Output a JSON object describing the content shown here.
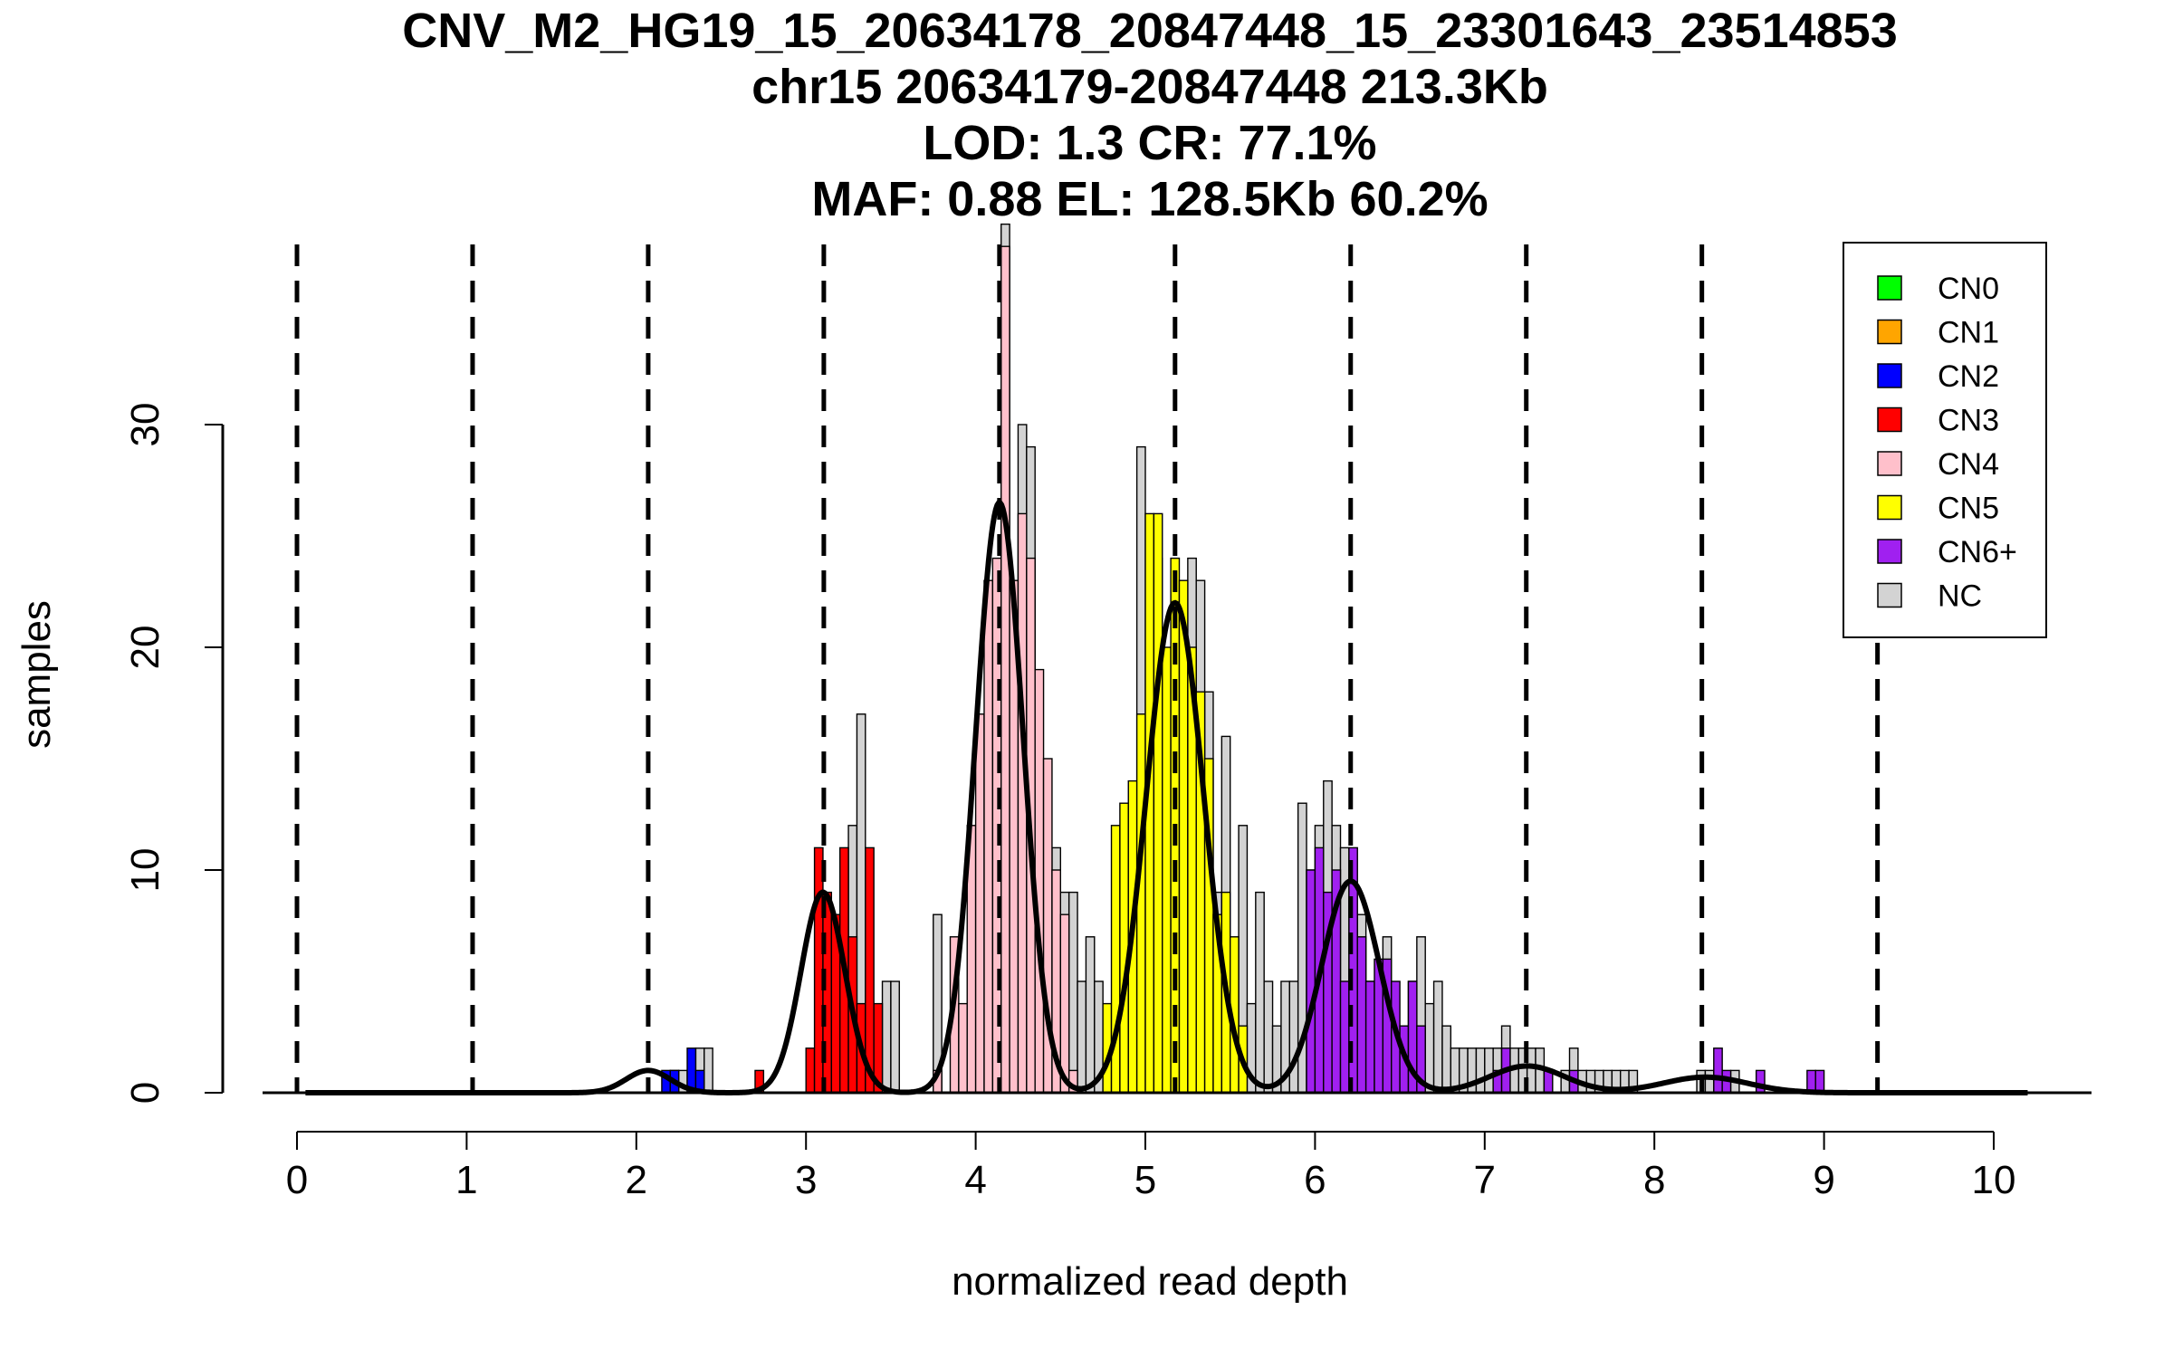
{
  "chart_data": {
    "type": "histogram",
    "title_lines": [
      "CNV_M2_HG19_15_20634178_20847448_15_23301643_23514853",
      "chr15 20634179-20847448 213.3Kb",
      "LOD: 1.3 CR: 77.1%",
      "MAF: 0.88 EL: 128.5Kb 60.2%"
    ],
    "xlabel": "normalized read depth",
    "ylabel": "samples",
    "xlim": [
      -0.2,
      10.5
    ],
    "ylim": [
      0,
      38
    ],
    "x_ticks": [
      0,
      1,
      2,
      3,
      4,
      5,
      6,
      7,
      8,
      9,
      10
    ],
    "x_tick_labels": [
      "0",
      "1",
      "2",
      "3",
      "4",
      "5",
      "6",
      "7",
      "8",
      "9",
      "10"
    ],
    "y_ticks": [
      0,
      10,
      20,
      30
    ],
    "y_tick_labels": [
      "0",
      "10",
      "20",
      "30"
    ],
    "bin_width": 0.05,
    "dashed_lines_x": [
      0.0,
      1.035,
      2.07,
      3.105,
      4.14,
      5.175,
      6.21,
      7.245,
      8.28,
      9.315
    ],
    "legend": {
      "position": "top-right",
      "entries": [
        {
          "label": "CN0",
          "color": "#00ff00"
        },
        {
          "label": "CN1",
          "color": "#ffa500"
        },
        {
          "label": "CN2",
          "color": "#0000ff"
        },
        {
          "label": "CN3",
          "color": "#ff0000"
        },
        {
          "label": "CN4",
          "color": "#ffc0cb"
        },
        {
          "label": "CN5",
          "color": "#ffff00"
        },
        {
          "label": "CN6+",
          "color": "#a020f0"
        },
        {
          "label": "NC",
          "color": "#d3d3d3"
        }
      ]
    },
    "series": [
      {
        "name": "CN2",
        "color": "#0000ff",
        "bins": [
          [
            2.15,
            1
          ],
          [
            2.2,
            1
          ],
          [
            2.3,
            2
          ],
          [
            2.35,
            1
          ]
        ]
      },
      {
        "name": "CN3",
        "color": "#ff0000",
        "bins": [
          [
            2.7,
            1
          ],
          [
            3.0,
            2
          ],
          [
            3.05,
            11
          ],
          [
            3.1,
            9
          ],
          [
            3.15,
            8
          ],
          [
            3.2,
            11
          ],
          [
            3.25,
            7
          ],
          [
            3.3,
            4
          ],
          [
            3.35,
            11
          ],
          [
            3.4,
            4
          ]
        ]
      },
      {
        "name": "CN4",
        "color": "#ffc0cb",
        "bins": [
          [
            3.75,
            1
          ],
          [
            3.85,
            7
          ],
          [
            3.9,
            4
          ],
          [
            3.95,
            12
          ],
          [
            4.0,
            17
          ],
          [
            4.05,
            23
          ],
          [
            4.1,
            24
          ],
          [
            4.15,
            38
          ],
          [
            4.2,
            23
          ],
          [
            4.25,
            26
          ],
          [
            4.3,
            24
          ],
          [
            4.35,
            19
          ],
          [
            4.4,
            15
          ],
          [
            4.45,
            10
          ],
          [
            4.5,
            8
          ],
          [
            4.55,
            1
          ]
        ]
      },
      {
        "name": "CN5",
        "color": "#ffff00",
        "bins": [
          [
            4.75,
            4
          ],
          [
            4.8,
            12
          ],
          [
            4.85,
            13
          ],
          [
            4.9,
            14
          ],
          [
            4.95,
            17
          ],
          [
            5.0,
            26
          ],
          [
            5.05,
            26
          ],
          [
            5.1,
            20
          ],
          [
            5.15,
            24
          ],
          [
            5.2,
            23
          ],
          [
            5.25,
            20
          ],
          [
            5.3,
            18
          ],
          [
            5.35,
            15
          ],
          [
            5.4,
            8
          ],
          [
            5.45,
            9
          ],
          [
            5.5,
            7
          ],
          [
            5.55,
            3
          ]
        ]
      },
      {
        "name": "CN6+",
        "color": "#a020f0",
        "bins": [
          [
            5.95,
            10
          ],
          [
            6.0,
            11
          ],
          [
            6.05,
            9
          ],
          [
            6.1,
            10
          ],
          [
            6.15,
            5
          ],
          [
            6.2,
            11
          ],
          [
            6.25,
            7
          ],
          [
            6.3,
            5
          ],
          [
            6.35,
            6
          ],
          [
            6.4,
            6
          ],
          [
            6.45,
            5
          ],
          [
            6.5,
            3
          ],
          [
            6.55,
            5
          ],
          [
            6.6,
            3
          ],
          [
            7.05,
            1
          ],
          [
            7.1,
            2
          ],
          [
            7.35,
            1
          ],
          [
            7.5,
            1
          ],
          [
            8.35,
            2
          ],
          [
            8.4,
            1
          ],
          [
            8.6,
            1
          ],
          [
            8.9,
            1
          ],
          [
            8.95,
            1
          ]
        ]
      },
      {
        "name": "NC",
        "color": "#d3d3d3",
        "bins": [
          [
            2.2,
            1
          ],
          [
            2.25,
            1
          ],
          [
            2.35,
            2
          ],
          [
            2.4,
            2
          ],
          [
            3.25,
            12
          ],
          [
            3.3,
            17
          ],
          [
            3.45,
            5
          ],
          [
            3.5,
            5
          ],
          [
            3.75,
            8
          ],
          [
            4.15,
            39
          ],
          [
            4.25,
            30
          ],
          [
            4.3,
            29
          ],
          [
            4.45,
            11
          ],
          [
            4.5,
            9
          ],
          [
            4.55,
            9
          ],
          [
            4.6,
            5
          ],
          [
            4.65,
            7
          ],
          [
            4.7,
            5
          ],
          [
            4.75,
            2
          ],
          [
            4.95,
            29
          ],
          [
            5.05,
            24
          ],
          [
            5.25,
            24
          ],
          [
            5.3,
            23
          ],
          [
            5.35,
            18
          ],
          [
            5.4,
            9
          ],
          [
            5.45,
            16
          ],
          [
            5.5,
            6
          ],
          [
            5.55,
            12
          ],
          [
            5.6,
            4
          ],
          [
            5.65,
            9
          ],
          [
            5.7,
            5
          ],
          [
            5.75,
            3
          ],
          [
            5.8,
            5
          ],
          [
            5.85,
            5
          ],
          [
            5.9,
            13
          ],
          [
            5.95,
            10
          ],
          [
            6.0,
            12
          ],
          [
            6.05,
            14
          ],
          [
            6.1,
            12
          ],
          [
            6.15,
            11
          ],
          [
            6.25,
            8
          ],
          [
            6.3,
            5
          ],
          [
            6.4,
            7
          ],
          [
            6.55,
            5
          ],
          [
            6.6,
            7
          ],
          [
            6.65,
            4
          ],
          [
            6.7,
            5
          ],
          [
            6.75,
            3
          ],
          [
            6.8,
            2
          ],
          [
            6.85,
            2
          ],
          [
            6.9,
            2
          ],
          [
            6.95,
            2
          ],
          [
            7.0,
            2
          ],
          [
            7.05,
            2
          ],
          [
            7.1,
            3
          ],
          [
            7.15,
            2
          ],
          [
            7.2,
            2
          ],
          [
            7.25,
            2
          ],
          [
            7.3,
            2
          ],
          [
            7.35,
            1
          ],
          [
            7.45,
            1
          ],
          [
            7.5,
            2
          ],
          [
            7.55,
            1
          ],
          [
            7.6,
            1
          ],
          [
            7.65,
            1
          ],
          [
            7.7,
            1
          ],
          [
            7.75,
            1
          ],
          [
            7.8,
            1
          ],
          [
            7.85,
            1
          ],
          [
            8.25,
            1
          ],
          [
            8.3,
            1
          ],
          [
            8.45,
            1
          ]
        ]
      }
    ],
    "fit_components": [
      {
        "mean": 2.07,
        "sd": 0.13,
        "peak": 1.0
      },
      {
        "mean": 3.1,
        "sd": 0.13,
        "peak": 9.0
      },
      {
        "mean": 4.14,
        "sd": 0.14,
        "peak": 26.5
      },
      {
        "mean": 5.175,
        "sd": 0.17,
        "peak": 22.0
      },
      {
        "mean": 6.21,
        "sd": 0.17,
        "peak": 9.5
      },
      {
        "mean": 7.25,
        "sd": 0.22,
        "peak": 1.2
      },
      {
        "mean": 8.3,
        "sd": 0.25,
        "peak": 0.7
      }
    ]
  }
}
